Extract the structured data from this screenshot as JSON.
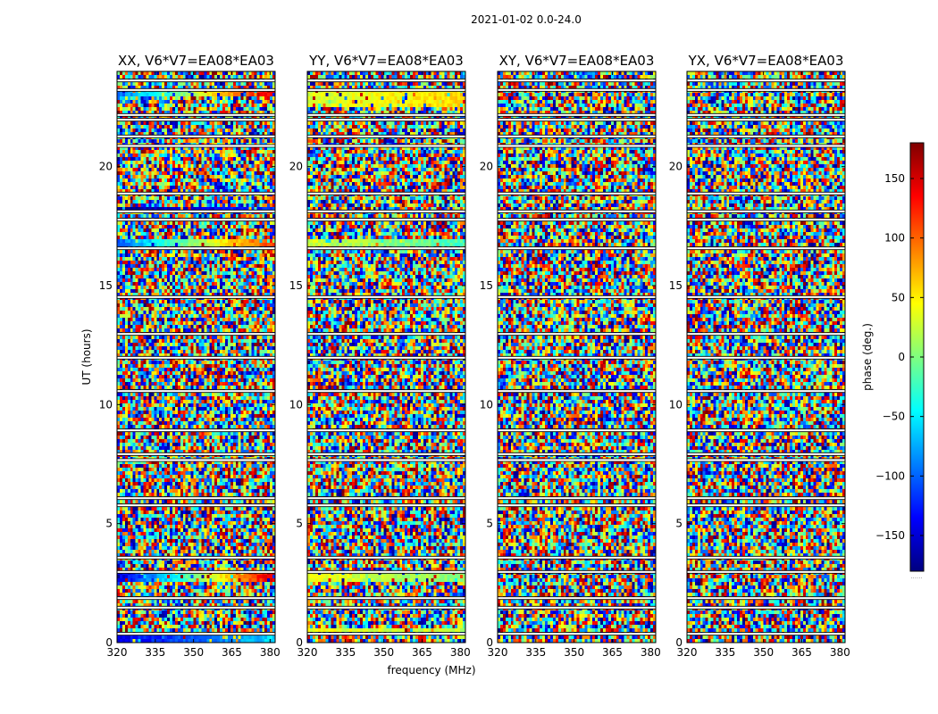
{
  "chart_data": {
    "type": "heatmap",
    "suptitle": "2021-01-02 0.0-24.0",
    "panels": [
      {
        "title": "XX, V6*V7=EA08*EA03"
      },
      {
        "title": "YY, V6*V7=EA08*EA03"
      },
      {
        "title": "XY, V6*V7=EA08*EA03"
      },
      {
        "title": "YX, V6*V7=EA08*EA03"
      }
    ],
    "xlabel": "frequency (MHz)",
    "ylabel": "UT (hours)",
    "xlim": [
      320,
      382
    ],
    "ylim": [
      0,
      24
    ],
    "xticks": [
      320,
      335,
      350,
      365,
      380
    ],
    "yticks": [
      0,
      5,
      10,
      15,
      20
    ],
    "colorbar": {
      "label": "phase (deg.)",
      "range": [
        -180,
        180
      ],
      "ticks": [
        150,
        100,
        50,
        0,
        -50,
        -100,
        -150
      ],
      "tick_labels": [
        "150",
        "100",
        "50",
        "0",
        "−50",
        "−100",
        "−150"
      ],
      "colormap": "jet",
      "colors": [
        "#00007f",
        "#0000ff",
        "#007fff",
        "#00ffff",
        "#7fff7f",
        "#ffff00",
        "#ff7f00",
        "#ff0000",
        "#7f0000"
      ],
      "footer": "......"
    },
    "flagged_gaps_hours": [
      0.35,
      1.45,
      1.85,
      2.95,
      3.55,
      5.75,
      6.05,
      7.65,
      7.9,
      8.9,
      10.55,
      11.95,
      12.95,
      14.5,
      16.55,
      17.75,
      18.1,
      18.85,
      20.85,
      21.25,
      21.95,
      22.15,
      23.2,
      23.6
    ],
    "coherent_bands": [
      {
        "panel": 0,
        "from_hour": 2.5,
        "to_hour": 2.95,
        "phase_start": -150,
        "phase_end": 150
      },
      {
        "panel": 0,
        "from_hour": 16.6,
        "to_hour": 16.9,
        "phase_start": -100,
        "phase_end": 120
      },
      {
        "panel": 0,
        "from_hour": 18.2,
        "to_hour": 18.35,
        "phase_start": -170,
        "phase_end": -120
      },
      {
        "panel": 0,
        "from_hour": 23.0,
        "to_hour": 23.2,
        "phase_start": -100,
        "phase_end": 150
      },
      {
        "panel": 0,
        "from_hour": 0.0,
        "to_hour": 0.3,
        "phase_start": -140,
        "phase_end": -60
      },
      {
        "panel": 1,
        "from_hour": 2.5,
        "to_hour": 2.95,
        "phase_start": 40,
        "phase_end": 0
      },
      {
        "panel": 1,
        "from_hour": 16.6,
        "to_hour": 16.9,
        "phase_start": 30,
        "phase_end": -20
      },
      {
        "panel": 1,
        "from_hour": 0.4,
        "to_hour": 0.6,
        "phase_start": 40,
        "phase_end": 20
      },
      {
        "panel": 1,
        "from_hour": 22.5,
        "to_hour": 23.2,
        "phase_start": 30,
        "phase_end": 60
      }
    ]
  }
}
